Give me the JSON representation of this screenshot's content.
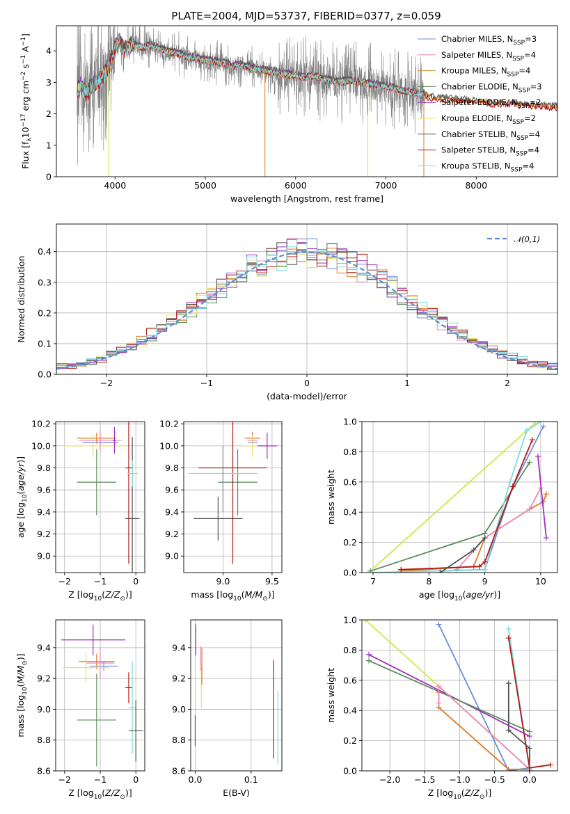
{
  "figure": {
    "title": "PLATE=2004, MJD=53737, FIBERID=0377, z=0.059"
  },
  "colors": {
    "Chabrier MILES": "#6a8fd8",
    "Salpeter MILES": "#e888b8",
    "Kroupa MILES": "#c89020",
    "Chabrier ELODIE": "#5a8a5a",
    "Salpeter ELODIE": "#a030c0",
    "Kroupa ELODIE": "#e8e070",
    "Chabrier STELIB": "#505050",
    "Salpeter STELIB": "#b01818",
    "Kroupa STELIB": "#80dada",
    "Orange": "#e07820",
    "LimeGreen": "#d0e840",
    "Gray": "#808080",
    "Normal": "#5b8bd9"
  },
  "chart_data": [
    {
      "id": "spectrum",
      "type": "line",
      "xlabel": "wavelength [Angstrom, rest frame]",
      "ylabel_parts": {
        "pre": "Flux [f",
        "sub": "λ",
        "mid": "10",
        "sup1": "−17",
        "mid2": " erg cm",
        "sup2": "−2",
        "mid3": " s",
        "sup3": "−1",
        "mid4": " A",
        "sup4": "−1",
        "post": "]"
      },
      "xlim": [
        3350,
        8900
      ],
      "ylim": [
        0,
        4.8
      ],
      "xticks": [
        4000,
        5000,
        6000,
        7000,
        8000
      ],
      "yticks": [
        0,
        1,
        2,
        3,
        4
      ],
      "legend_position": "upper-right",
      "series": [
        {
          "name_pre": "Chabrier MILES, N",
          "name_sub": "SSP",
          "name_post": "=3",
          "key": "Chabrier MILES"
        },
        {
          "name_pre": "Salpeter MILES, N",
          "name_sub": "SSP",
          "name_post": "=4",
          "key": "Salpeter MILES"
        },
        {
          "name_pre": "Kroupa MILES, N",
          "name_sub": "SSP",
          "name_post": "=4",
          "key": "Kroupa MILES"
        },
        {
          "name_pre": "Chabrier ELODIE, N",
          "name_sub": "SSP",
          "name_post": "=3",
          "key": "Chabrier ELODIE"
        },
        {
          "name_pre": "Salpeter ELODIE, N",
          "name_sub": "SSP",
          "name_post": "=2",
          "key": "Salpeter ELODIE"
        },
        {
          "name_pre": "Kroupa ELODIE, N",
          "name_sub": "SSP",
          "name_post": "=2",
          "key": "Kroupa ELODIE"
        },
        {
          "name_pre": "Chabrier STELIB, N",
          "name_sub": "SSP",
          "name_post": "=4",
          "key": "Chabrier STELIB"
        },
        {
          "name_pre": "Salpeter STELIB, N",
          "name_sub": "SSP",
          "name_post": "=4",
          "key": "Salpeter STELIB"
        },
        {
          "name_pre": "Kroupa STELIB, N",
          "name_sub": "SSP",
          "name_post": "=4",
          "key": "Kroupa STELIB"
        }
      ],
      "model_continuum": {
        "x": [
          3580,
          3620,
          3680,
          3750,
          3850,
          3950,
          4000,
          4050,
          4100,
          4200,
          4300,
          4400,
          4500,
          4600,
          4700,
          4800,
          4900,
          5000,
          5100,
          5200,
          5300,
          5400,
          5500,
          5600,
          5700,
          5800,
          5900,
          6000,
          6100,
          6200,
          6300,
          6400,
          6500,
          6600,
          6700,
          6800,
          6900,
          7000,
          7100,
          7200,
          7300,
          7400
        ],
        "y": [
          2.7,
          2.9,
          2.6,
          2.9,
          3.1,
          3.6,
          4.1,
          4.3,
          4.0,
          4.2,
          4.1,
          4.15,
          4.05,
          3.95,
          3.9,
          3.8,
          3.75,
          3.7,
          3.65,
          3.6,
          3.5,
          3.55,
          3.45,
          3.4,
          3.35,
          3.3,
          3.25,
          3.2,
          3.15,
          3.2,
          3.1,
          3.05,
          3.0,
          3.05,
          3.0,
          2.95,
          2.9,
          2.85,
          2.8,
          2.7,
          2.65,
          2.6
        ]
      },
      "extended_continuum": {
        "x": [
          7400,
          7500,
          7600,
          7700,
          7800,
          7900,
          8000,
          8100,
          8200,
          8300,
          8400,
          8500,
          8600,
          8700,
          8800,
          8900
        ],
        "y": [
          2.6,
          2.5,
          2.45,
          2.45,
          2.4,
          2.4,
          2.35,
          2.35,
          2.3,
          2.3,
          2.3,
          2.25,
          2.25,
          2.25,
          2.2,
          2.2
        ]
      },
      "observed_range": [
        3580,
        7430
      ],
      "masked_drops": [
        {
          "x": 3930,
          "color_key": "LimeGreen"
        },
        {
          "x": 5660,
          "color_key": "Orange"
        },
        {
          "x": 6800,
          "color_key": "LimeGreen"
        },
        {
          "x": 7420,
          "color_key": "Orange"
        }
      ]
    },
    {
      "id": "residuals",
      "type": "histogram",
      "xlabel": "(data-model)/error",
      "ylabel": "Normed distribution",
      "xlim": [
        -2.5,
        2.5
      ],
      "ylim": [
        0,
        0.49
      ],
      "xticks": [
        -2,
        -1,
        0,
        1,
        2
      ],
      "yticks": [
        0.0,
        0.1,
        0.2,
        0.3,
        0.4
      ],
      "legend": {
        "label": "𝒩(0,1)",
        "position": "upper-right"
      },
      "bin_width": 0.1
    },
    {
      "id": "age-vs-Z",
      "type": "errorbar",
      "xlabel_parts": {
        "pre": "Z [log",
        "sub": "10",
        "mid": "(",
        "it": "Z/Z",
        "sub2": "⊙",
        "post": ")]"
      },
      "ylabel_parts": {
        "pre": "age  [log",
        "sub": "10",
        "mid": "(",
        "it": "age/yr",
        "post": ")]"
      },
      "xlim": [
        -2.25,
        0.25
      ],
      "ylim": [
        8.85,
        10.22
      ],
      "xticks": [
        -2,
        -1,
        0
      ],
      "yticks": [
        9.0,
        9.2,
        9.4,
        9.6,
        9.8,
        10.0,
        10.2
      ],
      "points": [
        {
          "k": "Chabrier MILES",
          "x": -1.0,
          "xerr": 0.5,
          "y": 10.03,
          "yerr": 0.05
        },
        {
          "k": "Salpeter MILES",
          "x": -1.0,
          "xerr": 0.6,
          "y": 10.05,
          "yerr": 0.1
        },
        {
          "k": "Orange",
          "x": -1.1,
          "xerr": 0.55,
          "y": 10.07,
          "yerr": 0.05
        },
        {
          "k": "Kroupa ELODIE",
          "x": -1.2,
          "xerr": 0.9,
          "y": 10.0,
          "yerr": 0.1
        },
        {
          "k": "Salpeter ELODIE",
          "x": -0.6,
          "xerr": 0.05,
          "y": 10.05,
          "yerr": 0.12
        },
        {
          "k": "Chabrier ELODIE",
          "x": -1.1,
          "xerr": 0.55,
          "y": 9.67,
          "yerr": 0.3
        },
        {
          "k": "Chabrier STELIB",
          "x": -0.1,
          "xerr": 0.2,
          "y": 9.34,
          "yerr": 0.74
        },
        {
          "k": "Salpeter STELIB",
          "x": -0.2,
          "xerr": 0.1,
          "y": 9.8,
          "yerr": 0.87
        },
        {
          "k": "Kroupa STELIB",
          "x": -0.1,
          "xerr": 0.15,
          "y": 9.75,
          "yerr": 0.12
        }
      ]
    },
    {
      "id": "age-vs-mass",
      "type": "errorbar",
      "xlabel_parts": {
        "pre": "mass [log",
        "sub": "10",
        "mid": "(",
        "it": "M/M",
        "sub2": "⊙",
        "post": ")]"
      },
      "xlim": [
        8.6,
        9.6
      ],
      "ylim": [
        8.85,
        10.22
      ],
      "xticks": [
        9.0,
        9.5
      ],
      "yticks": [
        9.0,
        9.2,
        9.4,
        9.6,
        9.8,
        10.0,
        10.2
      ],
      "points": [
        {
          "k": "Chabrier MILES",
          "x": 9.3,
          "xerr": 0.05,
          "y": 10.03,
          "yerr": 0.05
        },
        {
          "k": "Salpeter MILES",
          "x": 9.3,
          "xerr": 0.05,
          "y": 10.05,
          "yerr": 0.08
        },
        {
          "k": "Orange",
          "x": 9.3,
          "xerr": 0.08,
          "y": 10.07,
          "yerr": 0.05
        },
        {
          "k": "Kroupa ELODIE",
          "x": 9.3,
          "xerr": 0.1,
          "y": 10.0,
          "yerr": 0.1
        },
        {
          "k": "Salpeter ELODIE",
          "x": 9.45,
          "xerr": 0.1,
          "y": 10.0,
          "yerr": 0.12
        },
        {
          "k": "Chabrier ELODIE",
          "x": 9.15,
          "xerr": 0.2,
          "y": 9.67,
          "yerr": 0.3
        },
        {
          "k": "Chabrier STELIB",
          "x": 8.95,
          "xerr": 0.25,
          "y": 9.34,
          "yerr": 0.2
        },
        {
          "k": "Salpeter STELIB",
          "x": 9.1,
          "xerr": 0.35,
          "y": 9.8,
          "yerr": 0.87
        },
        {
          "k": "Kroupa STELIB",
          "x": 9.0,
          "xerr": 0.35,
          "y": 9.75,
          "yerr": 0.0
        },
        {
          "k": "Gray",
          "x": 9.0,
          "xerr": 0.0,
          "y": 9.7,
          "yerr": 0.3
        }
      ]
    },
    {
      "id": "mass-weight-vs-age",
      "type": "line",
      "xlabel_parts": {
        "pre": "age  [log",
        "sub": "10",
        "mid": "(",
        "it": "age/yr",
        "post": ")]"
      },
      "ylabel": "mass weight",
      "xlim": [
        6.8,
        10.3
      ],
      "ylim": [
        0,
        1.0
      ],
      "xticks": [
        7,
        8,
        9,
        10
      ],
      "yticks": [
        0.0,
        0.2,
        0.4,
        0.6,
        0.8,
        1.0
      ],
      "series": [
        {
          "k": "Kroupa ELODIE_l",
          "color": "#d0e840",
          "x": [
            6.95,
            9.9
          ],
          "y": [
            0.01,
            0.99
          ]
        },
        {
          "k": "Chabrier MILES",
          "x": [
            8.2,
            9.0,
            9.5,
            10.05
          ],
          "y": [
            0.01,
            0.02,
            0.57,
            0.97
          ]
        },
        {
          "k": "Chabrier ELODIE",
          "x": [
            6.95,
            9.0,
            9.8
          ],
          "y": [
            0.01,
            0.26,
            0.73
          ]
        },
        {
          "k": "Orange",
          "x": [
            7.5,
            8.8,
            9.0,
            9.8,
            10.05,
            10.1
          ],
          "y": [
            0.01,
            0.04,
            0.23,
            0.42,
            0.47,
            0.52
          ]
        },
        {
          "k": "Salpeter MILES",
          "x": [
            8.5,
            9.0,
            9.8,
            10.0
          ],
          "y": [
            0.02,
            0.23,
            0.42,
            0.56
          ]
        },
        {
          "k": "Salpeter ELODIE",
          "x": [
            9.95,
            10.1
          ],
          "y": [
            0.77,
            0.23
          ]
        },
        {
          "k": "Kroupa STELIB",
          "x": [
            7.0,
            9.0,
            9.45,
            9.75,
            10.0
          ],
          "y": [
            0.0,
            0.02,
            0.6,
            0.94,
            1.0
          ]
        },
        {
          "k": "Salpeter STELIB",
          "x": [
            7.5,
            8.9,
            9.0,
            9.5,
            9.85
          ],
          "y": [
            0.02,
            0.04,
            0.07,
            0.57,
            0.88
          ]
        },
        {
          "k": "Chabrier STELIB",
          "x": [
            8.2,
            8.8,
            9.0
          ],
          "y": [
            0.0,
            0.15,
            0.23
          ]
        }
      ]
    },
    {
      "id": "mass-vs-Z",
      "type": "errorbar",
      "xlabel_parts": {
        "pre": "Z [log",
        "sub": "10",
        "mid": "(",
        "it": "Z/Z",
        "sub2": "⊙",
        "post": ")]"
      },
      "ylabel_parts": {
        "pre": "mass [log",
        "sub": "10",
        "mid": "(",
        "it": "M/M",
        "sub2": "⊙",
        "post": ")]"
      },
      "xlim": [
        -2.25,
        0.25
      ],
      "ylim": [
        8.6,
        9.58
      ],
      "xticks": [
        -2,
        -1,
        0
      ],
      "yticks": [
        8.6,
        8.8,
        9.0,
        9.2,
        9.4
      ],
      "points": [
        {
          "k": "Salpeter ELODIE",
          "x": -1.2,
          "xerr": 0.9,
          "y": 9.45,
          "yerr": 0.1
        },
        {
          "k": "Chabrier MILES",
          "x": -0.9,
          "xerr": 0.4,
          "y": 9.28,
          "yerr": 0.03
        },
        {
          "k": "Orange",
          "x": -1.1,
          "xerr": 0.5,
          "y": 9.31,
          "yerr": 0.05
        },
        {
          "k": "Salpeter MILES",
          "x": -1.0,
          "xerr": 0.4,
          "y": 9.3,
          "yerr": 0.1
        },
        {
          "k": "Kroupa ELODIE",
          "x": -1.4,
          "xerr": 0.65,
          "y": 9.27,
          "yerr": 0.1
        },
        {
          "k": "Chabrier ELODIE",
          "x": -1.1,
          "xerr": 0.55,
          "y": 8.93,
          "yerr": 0.3
        },
        {
          "k": "Salpeter STELIB",
          "x": -0.2,
          "xerr": 0.1,
          "y": 9.14,
          "yerr": 0.1
        },
        {
          "k": "Kroupa STELIB",
          "x": -0.1,
          "xerr": 0.1,
          "y": 9.01,
          "yerr": 0.3
        },
        {
          "k": "Chabrier STELIB",
          "x": 0.0,
          "xerr": 0.2,
          "y": 8.86,
          "yerr": 0.2
        }
      ]
    },
    {
      "id": "mass-vs-ebv",
      "type": "errorbar",
      "xlabel": "E(B-V)",
      "xlim": [
        -0.008,
        0.155
      ],
      "ylim": [
        8.6,
        9.58
      ],
      "xticks": [
        0.0,
        0.1
      ],
      "yticks": [
        8.6,
        8.8,
        9.0,
        9.2,
        9.4
      ],
      "points": [
        {
          "k": "Salpeter ELODIE",
          "x": 0.001,
          "xerr": 0,
          "y": 9.45,
          "yerr": 0.1
        },
        {
          "k": "Chabrier STELIB",
          "x": 0.0,
          "xerr": 0,
          "y": 8.86,
          "yerr": 0.1
        },
        {
          "k": "Salpeter MILES",
          "x": 0.01,
          "xerr": 0,
          "y": 9.33,
          "yerr": 0.08
        },
        {
          "k": "Kroupa ELODIE",
          "x": 0.011,
          "xerr": 0,
          "y": 9.15,
          "yerr": 0.14
        },
        {
          "k": "Orange",
          "x": 0.012,
          "xerr": 0,
          "y": 9.28,
          "yerr": 0.12
        },
        {
          "k": "Salpeter STELIB",
          "x": 0.14,
          "xerr": 0,
          "y": 9.0,
          "yerr": 0.32
        },
        {
          "k": "Kroupa STELIB",
          "x": 0.148,
          "xerr": 0,
          "y": 8.88,
          "yerr": 0.24
        }
      ]
    },
    {
      "id": "mass-weight-vs-Z",
      "type": "line",
      "xlabel_parts": {
        "pre": "Z [log",
        "sub": "10",
        "mid": "(",
        "it": "Z/Z",
        "sub2": "⊙",
        "post": ")]"
      },
      "ylabel": "mass weight",
      "xlim": [
        -2.4,
        0.4
      ],
      "ylim": [
        0,
        1.0
      ],
      "xticks": [
        -2.0,
        -1.5,
        -1.0,
        -0.5,
        0.0
      ],
      "yticks": [
        0.0,
        0.2,
        0.4,
        0.6,
        0.8,
        1.0
      ],
      "series": [
        {
          "k": "LimeGreen",
          "x": [
            -2.35,
            -1.3,
            0.0
          ],
          "y": [
            1.0,
            0.56,
            0.01
          ]
        },
        {
          "k": "Chabrier MILES",
          "x": [
            -1.3,
            -0.3,
            0.0
          ],
          "y": [
            0.97,
            0.0,
            0.02
          ]
        },
        {
          "k": "Salpeter ELODIE",
          "x": [
            -2.3,
            0.0
          ],
          "y": [
            0.77,
            0.23
          ]
        },
        {
          "k": "Chabrier ELODIE",
          "x": [
            -2.3,
            0.0
          ],
          "y": [
            0.73,
            0.26
          ]
        },
        {
          "k": "Orange",
          "x": [
            -1.3,
            -1.3,
            -0.3,
            0.0
          ],
          "y": [
            0.52,
            0.42,
            0.01,
            0.01
          ]
        },
        {
          "k": "Salpeter MILES",
          "x": [
            -1.3,
            -1.3,
            0.0
          ],
          "y": [
            0.45,
            0.56,
            0.01
          ]
        },
        {
          "k": "Kroupa STELIB",
          "x": [
            -0.3,
            0.0
          ],
          "y": [
            0.94,
            0.01
          ]
        },
        {
          "k": "Salpeter STELIB",
          "x": [
            -0.3,
            0.0,
            0.3
          ],
          "y": [
            0.88,
            0.02,
            0.04
          ]
        },
        {
          "k": "Chabrier STELIB",
          "x": [
            -0.3,
            -0.3,
            0.0,
            0.0
          ],
          "y": [
            0.58,
            0.27,
            0.15,
            0.0
          ]
        }
      ]
    }
  ]
}
